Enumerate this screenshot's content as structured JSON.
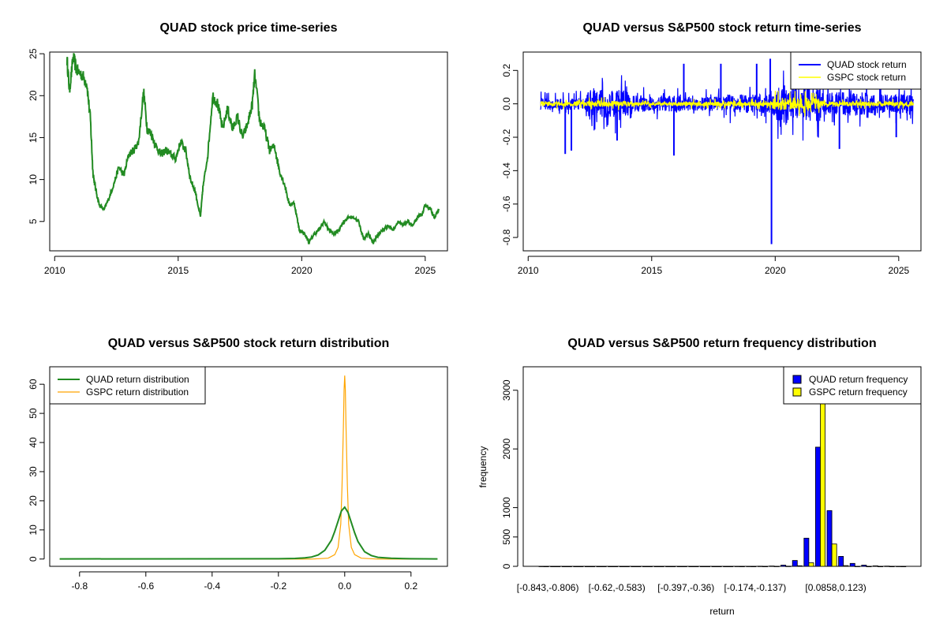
{
  "colors": {
    "price": "#228B22",
    "quad_return": "#0000FF",
    "gspc_return": "#FFFF00",
    "quad_density": "#228B22",
    "gspc_density": "#FFA500",
    "quad_hist": "#0000FF",
    "gspc_hist": "#FFFF00",
    "axis": "#000000"
  },
  "chart_data": [
    {
      "type": "line",
      "title": "QUAD stock price time-series",
      "xlabel": "",
      "ylabel": "",
      "xlim": [
        2009.8,
        2025.9
      ],
      "ylim": [
        1.5,
        25.2
      ],
      "xticks": [
        2010,
        2015,
        2020,
        2025
      ],
      "yticks": [
        5,
        10,
        15,
        20,
        25
      ],
      "series": [
        {
          "x": [
            2010.5,
            2010.6,
            2010.75,
            2010.9,
            2011.1,
            2011.3,
            2011.45,
            2011.55,
            2011.65,
            2011.8,
            2012.0,
            2012.2,
            2012.4,
            2012.6,
            2012.8,
            2013.0,
            2013.2,
            2013.4,
            2013.6,
            2013.75,
            2013.9,
            2014.1,
            2014.3,
            2014.5,
            2014.7,
            2014.9,
            2015.1,
            2015.3,
            2015.5,
            2015.7,
            2015.9,
            2016.0,
            2016.2,
            2016.4,
            2016.6,
            2016.8,
            2017.0,
            2017.2,
            2017.4,
            2017.6,
            2017.8,
            2018.0,
            2018.1,
            2018.3,
            2018.5,
            2018.7,
            2018.9,
            2019.1,
            2019.3,
            2019.5,
            2019.7,
            2019.9,
            2020.1,
            2020.3,
            2020.5,
            2020.7,
            2020.9,
            2021.1,
            2021.3,
            2021.5,
            2021.7,
            2021.9,
            2022.1,
            2022.3,
            2022.5,
            2022.7,
            2022.9,
            2023.1,
            2023.3,
            2023.5,
            2023.7,
            2023.9,
            2024.1,
            2024.3,
            2024.5,
            2024.7,
            2024.9,
            2025.0,
            2025.2,
            2025.4,
            2025.55
          ],
          "values": [
            24.3,
            20.6,
            24.6,
            23.0,
            22.5,
            21.5,
            17.0,
            10.8,
            9.0,
            7.0,
            6.4,
            7.8,
            9.5,
            11.5,
            10.5,
            13.0,
            13.5,
            14.5,
            20.5,
            16.0,
            15.5,
            14.0,
            13.0,
            13.5,
            13.0,
            12.5,
            14.5,
            13.5,
            10.0,
            8.5,
            5.5,
            9.0,
            13.0,
            20.0,
            19.0,
            16.0,
            18.5,
            16.0,
            17.5,
            15.0,
            16.5,
            19.0,
            22.5,
            17.0,
            16.0,
            13.5,
            14.0,
            11.0,
            9.5,
            7.0,
            7.2,
            4.0,
            3.6,
            2.5,
            3.5,
            4.0,
            5.0,
            4.0,
            3.5,
            4.0,
            5.0,
            5.5,
            5.5,
            5.0,
            3.0,
            3.5,
            2.5,
            3.5,
            4.0,
            4.5,
            4.0,
            5.0,
            4.5,
            5.0,
            4.5,
            5.5,
            6.0,
            7.0,
            6.5,
            5.5,
            6.5
          ]
        }
      ]
    },
    {
      "type": "line",
      "title": "QUAD versus S&P500 stock return time-series",
      "xlabel": "",
      "ylabel": "",
      "xlim": [
        2009.8,
        2025.9
      ],
      "ylim": [
        -0.88,
        0.31
      ],
      "xticks": [
        2010,
        2015,
        2020,
        2025
      ],
      "yticks": [
        -0.8,
        -0.6,
        -0.4,
        -0.2,
        0.0,
        0.2
      ],
      "legend": [
        "QUAD stock return",
        "GSPC stock return"
      ],
      "legend_position": "top-right",
      "series": [
        {
          "name": "QUAD stock return",
          "spikes_x": [
            2011.5,
            2011.75,
            2013.6,
            2015.9,
            2016.3,
            2017.8,
            2019.25,
            2019.8,
            2019.85,
            2021.3,
            2022.6,
            2024.9
          ],
          "spikes_y": [
            -0.3,
            -0.28,
            -0.22,
            -0.31,
            0.24,
            0.24,
            0.24,
            0.27,
            -0.84,
            0.26,
            -0.27,
            -0.2
          ],
          "noise_amplitude": [
            0.05,
            0.12,
            0.07,
            0.06,
            0.08,
            0.15,
            0.1,
            0.08
          ]
        },
        {
          "name": "GSPC stock return",
          "noise_amplitude": [
            0.02,
            0.025,
            0.015,
            0.02,
            0.02,
            0.05,
            0.02,
            0.02
          ]
        }
      ]
    },
    {
      "type": "line",
      "title": "QUAD versus S&P500 stock return distribution",
      "xlabel": "",
      "ylabel": "",
      "xlim": [
        -0.89,
        0.31
      ],
      "ylim": [
        -2.5,
        66
      ],
      "xticks": [
        -0.8,
        -0.6,
        -0.4,
        -0.2,
        0.0,
        0.2
      ],
      "yticks": [
        0,
        10,
        20,
        30,
        40,
        50,
        60
      ],
      "legend": [
        "QUAD return distribution",
        "GSPC return distribution"
      ],
      "legend_position": "top-left",
      "series": [
        {
          "name": "QUAD return distribution",
          "x": [
            -0.86,
            -0.2,
            -0.15,
            -0.12,
            -0.1,
            -0.08,
            -0.06,
            -0.04,
            -0.03,
            -0.02,
            -0.01,
            0.0,
            0.01,
            0.02,
            0.03,
            0.04,
            0.06,
            0.08,
            0.1,
            0.14,
            0.2,
            0.28
          ],
          "values": [
            0.05,
            0.1,
            0.2,
            0.4,
            0.7,
            1.4,
            3.0,
            6.5,
            9.5,
            13.0,
            16.5,
            17.8,
            16.0,
            12.5,
            9.0,
            6.0,
            2.5,
            1.2,
            0.6,
            0.25,
            0.1,
            0.05
          ]
        },
        {
          "name": "GSPC return distribution",
          "x": [
            -0.86,
            -0.1,
            -0.05,
            -0.03,
            -0.02,
            -0.012,
            -0.008,
            -0.004,
            -0.002,
            0.0,
            0.002,
            0.004,
            0.008,
            0.012,
            0.02,
            0.03,
            0.05,
            0.1,
            0.28
          ],
          "values": [
            0.0,
            0.0,
            0.3,
            1.5,
            4.0,
            12.0,
            25.0,
            45.0,
            58.0,
            63.0,
            58.0,
            45.0,
            25.0,
            12.0,
            4.0,
            1.5,
            0.3,
            0.0,
            0.0
          ]
        }
      ]
    },
    {
      "type": "bar",
      "title": "QUAD versus S&P500 return frequency distribution",
      "xlabel": "return",
      "ylabel": "frequency",
      "ylim": [
        0,
        3400
      ],
      "yticks": [
        0,
        500,
        1000,
        2000,
        3000
      ],
      "xtick_labels": [
        "[-0.843,-0.806)",
        "[-0.62,-0.583)",
        "[-0.397,-0.36)",
        "[-0.174,-0.137)",
        "[0.0858,0.123)"
      ],
      "xtick_bins": [
        0,
        6,
        12,
        18,
        25
      ],
      "legend": [
        "QUAD return frequency",
        "GSPC return frequency"
      ],
      "legend_position": "top-right",
      "series": [
        {
          "name": "QUAD return frequency",
          "values": [
            1,
            0,
            0,
            0,
            0,
            0,
            0,
            0,
            0,
            0,
            0,
            0,
            0,
            0,
            0,
            0,
            0,
            1,
            2,
            3,
            6,
            20,
            100,
            480,
            2030,
            950,
            170,
            50,
            20,
            8,
            4,
            2
          ]
        },
        {
          "name": "GSPC return frequency",
          "values": [
            0,
            0,
            0,
            0,
            0,
            0,
            0,
            0,
            0,
            0,
            0,
            0,
            0,
            0,
            0,
            0,
            0,
            0,
            0,
            0,
            1,
            3,
            10,
            60,
            3250,
            380,
            12,
            2,
            0,
            0,
            0,
            0
          ]
        }
      ]
    }
  ]
}
